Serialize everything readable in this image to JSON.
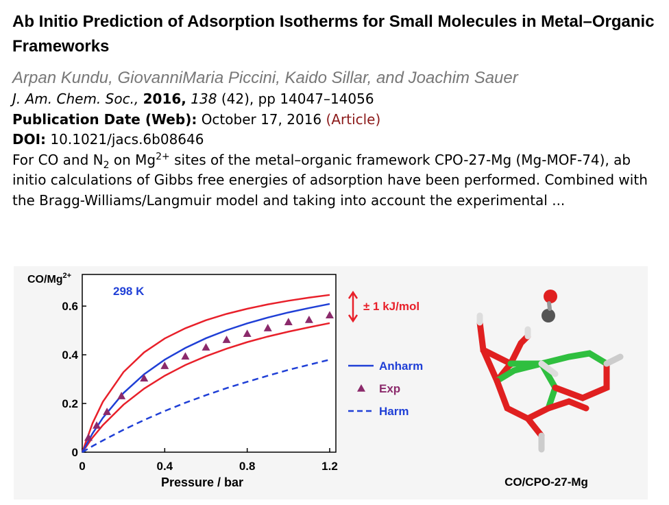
{
  "article": {
    "title": "Ab Initio Prediction of Adsorption Isotherms for Small Molecules in Metal–Organic Frameworks",
    "authors": "Arpan Kundu, GiovanniMaria Piccini, Kaido Sillar, and Joachim Sauer",
    "citation": {
      "journal": "J. Am. Chem. Soc.,",
      "year": "2016,",
      "volume": "138",
      "rest": "(42), pp 14047–14056"
    },
    "publication_date": {
      "label": "Publication Date (Web):",
      "value": "October 17, 2016",
      "link": "(Article)"
    },
    "doi": {
      "label": "DOI:",
      "value": "10.1021/jacs.6b08646"
    },
    "abstract": [
      {
        "text": "For CO and N"
      },
      {
        "text": "2",
        "format": "sub"
      },
      {
        "text": " on Mg"
      },
      {
        "text": "2+",
        "format": "sup"
      },
      {
        "text": " sites of the metal–organic framework CPO-27-Mg (Mg-MOF-74), ab initio calculations of Gibbs free energies of adsorption have been performed. Combined with the Bragg-Williams/Langmuir model and taking into account the experimental ..."
      }
    ]
  },
  "figure": {
    "caption": "CO/CPO-27-Mg",
    "chart_data": {
      "type": "line",
      "title": "298 K",
      "y_label": "CO/Mg",
      "y_label_superscript": "2+",
      "x_label": "Pressure / bar",
      "annotation": "± 1 kJ/mol",
      "xlim": [
        0,
        1.23
      ],
      "ylim": [
        0,
        0.73
      ],
      "xticks": [
        0,
        0.4,
        0.8,
        1.2
      ],
      "yticks": [
        0,
        0.2,
        0.4,
        0.6
      ],
      "series": [
        {
          "color": "#e8202a",
          "x": [
            0,
            0.05,
            0.1,
            0.2,
            0.3,
            0.4,
            0.5,
            0.6,
            0.7,
            0.8,
            0.9,
            1.0,
            1.1,
            1.2
          ],
          "values": [
            0,
            0.119,
            0.207,
            0.329,
            0.41,
            0.467,
            0.509,
            0.542,
            0.568,
            0.589,
            0.607,
            0.622,
            0.635,
            0.646
          ]
        },
        {
          "color": "#e8202a",
          "x": [
            0,
            0.05,
            0.1,
            0.2,
            0.3,
            0.4,
            0.5,
            0.6,
            0.7,
            0.8,
            0.9,
            1.0,
            1.1,
            1.2
          ],
          "values": [
            0,
            0.06,
            0.111,
            0.195,
            0.261,
            0.314,
            0.358,
            0.394,
            0.425,
            0.452,
            0.475,
            0.495,
            0.513,
            0.53
          ]
        },
        {
          "name": "Anharm",
          "color": "#1f3fd6",
          "x": [
            0,
            0.05,
            0.1,
            0.2,
            0.3,
            0.4,
            0.5,
            0.6,
            0.7,
            0.8,
            0.9,
            1.0,
            1.1,
            1.2
          ],
          "values": [
            0,
            0.077,
            0.141,
            0.243,
            0.32,
            0.38,
            0.428,
            0.468,
            0.501,
            0.529,
            0.553,
            0.574,
            0.592,
            0.609
          ]
        },
        {
          "name": "Exp",
          "color": "#8b2a6b",
          "marker": "triangle",
          "x": [
            0.03,
            0.07,
            0.12,
            0.19,
            0.3,
            0.4,
            0.5,
            0.6,
            0.7,
            0.8,
            0.9,
            1.0,
            1.1,
            1.2
          ],
          "values": [
            0.06,
            0.11,
            0.166,
            0.231,
            0.304,
            0.355,
            0.394,
            0.431,
            0.462,
            0.487,
            0.51,
            0.535,
            0.544,
            0.563
          ]
        },
        {
          "name": "Harm",
          "color": "#1f3fd6",
          "dash": true,
          "x": [
            0,
            0.05,
            0.1,
            0.2,
            0.3,
            0.4,
            0.5,
            0.6,
            0.7,
            0.8,
            0.9,
            1.0,
            1.1,
            1.2
          ],
          "values": [
            0,
            0.025,
            0.048,
            0.092,
            0.132,
            0.169,
            0.203,
            0.234,
            0.263,
            0.289,
            0.314,
            0.338,
            0.359,
            0.38
          ]
        }
      ],
      "legend_order": [
        2,
        3,
        4
      ]
    }
  }
}
